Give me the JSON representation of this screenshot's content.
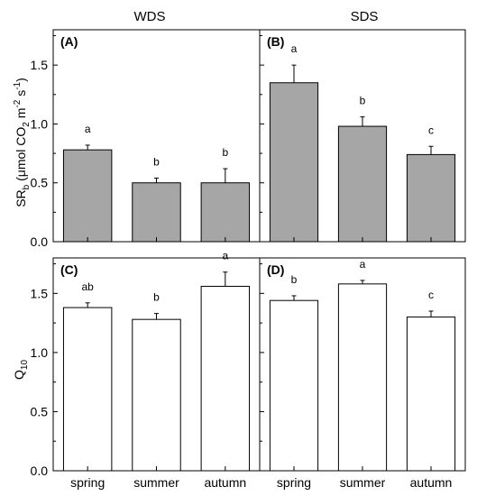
{
  "figure": {
    "column_titles": [
      "WDS",
      "SDS"
    ],
    "categories": [
      "spring",
      "summer",
      "autumn"
    ],
    "colors": {
      "top_bar_fill": "#a6a6a6",
      "bottom_bar_fill": "#ffffff",
      "stroke": "#000000"
    }
  },
  "chart_data": [
    {
      "type": "bar",
      "panel": "(A)",
      "title": "WDS",
      "ylabel": "SR_b (μmol CO_2 m^-2 s^-1)",
      "ylim": [
        0,
        1.8
      ],
      "yticks": [
        "0.0",
        "0.5",
        "1.0",
        "1.5"
      ],
      "categories": [
        "spring",
        "summer",
        "autumn"
      ],
      "values": [
        0.78,
        0.5,
        0.5
      ],
      "errors": [
        0.04,
        0.04,
        0.12
      ],
      "letters": [
        "a",
        "b",
        "b"
      ]
    },
    {
      "type": "bar",
      "panel": "(B)",
      "title": "SDS",
      "ylim": [
        0,
        1.8
      ],
      "categories": [
        "spring",
        "summer",
        "autumn"
      ],
      "values": [
        1.35,
        0.98,
        0.74
      ],
      "errors": [
        0.15,
        0.08,
        0.07
      ],
      "letters": [
        "a",
        "b",
        "c"
      ]
    },
    {
      "type": "bar",
      "panel": "(C)",
      "ylabel": "Q_10",
      "ylim": [
        0,
        1.8
      ],
      "yticks": [
        "0.0",
        "0.5",
        "1.0",
        "1.5"
      ],
      "categories": [
        "spring",
        "summer",
        "autumn"
      ],
      "values": [
        1.38,
        1.28,
        1.56
      ],
      "errors": [
        0.04,
        0.05,
        0.12
      ],
      "letters": [
        "ab",
        "b",
        "a"
      ]
    },
    {
      "type": "bar",
      "panel": "(D)",
      "ylim": [
        0,
        1.8
      ],
      "categories": [
        "spring",
        "summer",
        "autumn"
      ],
      "values": [
        1.44,
        1.58,
        1.3
      ],
      "errors": [
        0.04,
        0.03,
        0.05
      ],
      "letters": [
        "b",
        "a",
        "c"
      ]
    }
  ]
}
